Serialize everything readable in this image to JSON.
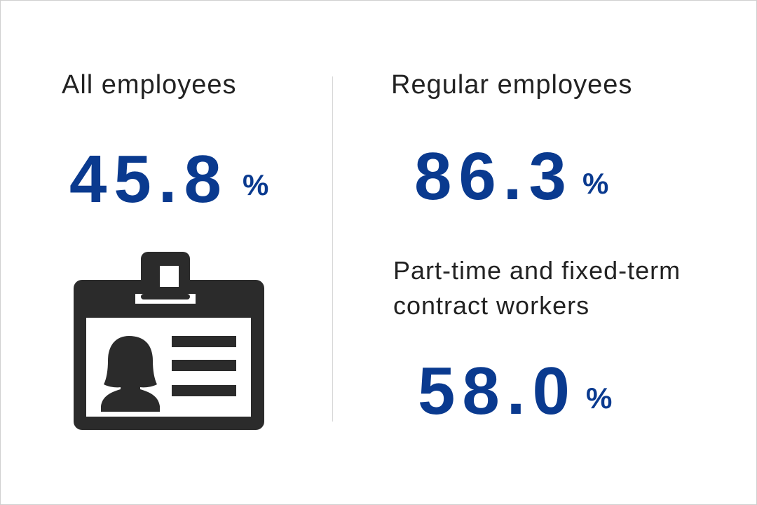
{
  "stats": [
    {
      "label": "All employees",
      "value": "45.8",
      "unit": "%"
    },
    {
      "label": "Regular employees",
      "value": "86.3",
      "unit": "%"
    },
    {
      "label": "Part-time and fixed-term contract workers",
      "value": "58.0",
      "unit": "%"
    }
  ]
}
